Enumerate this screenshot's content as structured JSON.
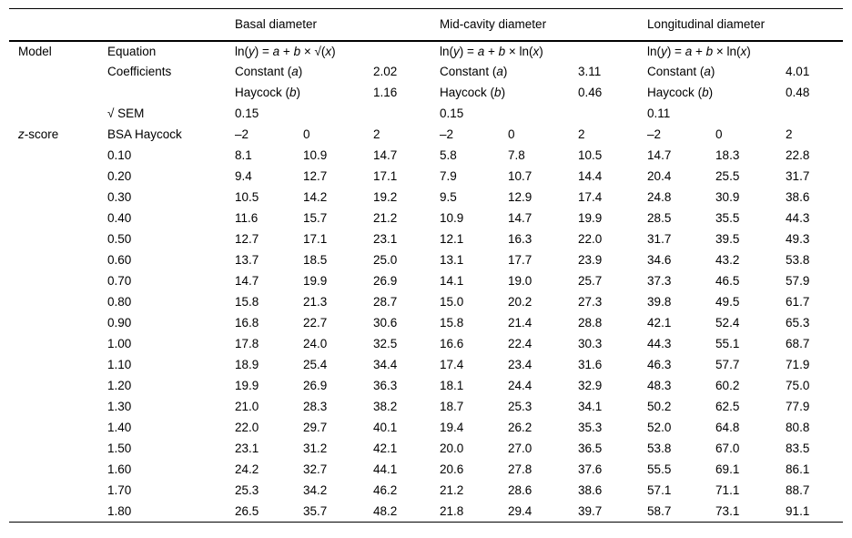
{
  "table": {
    "group_headers": [
      "Basal diameter",
      "Mid-cavity diameter",
      "Longitudinal diameter"
    ],
    "model": {
      "label": "Model",
      "equation_label": "Equation",
      "coefficients_label": "Coefficients",
      "sem_label": "√ SEM",
      "constant_label": "Constant (a)",
      "haycock_label": "Haycock (b)",
      "groups": [
        {
          "equation": "ln(y) = a + b × √(x)",
          "constant": "2.02",
          "haycock": "1.16",
          "sem": "0.15"
        },
        {
          "equation": "ln(y) = a + b × ln(x)",
          "constant": "3.11",
          "haycock": "0.46",
          "sem": "0.15"
        },
        {
          "equation": "ln(y) = a + b × ln(x)",
          "constant": "4.01",
          "haycock": "0.48",
          "sem": "0.11"
        }
      ]
    },
    "zscore": {
      "label": "z-score",
      "bsa_label": "BSA Haycock",
      "z_columns": [
        "–2",
        "0",
        "2"
      ],
      "rows": [
        {
          "bsa": "0.10",
          "values": [
            "8.1",
            "10.9",
            "14.7",
            "5.8",
            "7.8",
            "10.5",
            "14.7",
            "18.3",
            "22.8"
          ]
        },
        {
          "bsa": "0.20",
          "values": [
            "9.4",
            "12.7",
            "17.1",
            "7.9",
            "10.7",
            "14.4",
            "20.4",
            "25.5",
            "31.7"
          ]
        },
        {
          "bsa": "0.30",
          "values": [
            "10.5",
            "14.2",
            "19.2",
            "9.5",
            "12.9",
            "17.4",
            "24.8",
            "30.9",
            "38.6"
          ]
        },
        {
          "bsa": "0.40",
          "values": [
            "11.6",
            "15.7",
            "21.2",
            "10.9",
            "14.7",
            "19.9",
            "28.5",
            "35.5",
            "44.3"
          ]
        },
        {
          "bsa": "0.50",
          "values": [
            "12.7",
            "17.1",
            "23.1",
            "12.1",
            "16.3",
            "22.0",
            "31.7",
            "39.5",
            "49.3"
          ]
        },
        {
          "bsa": "0.60",
          "values": [
            "13.7",
            "18.5",
            "25.0",
            "13.1",
            "17.7",
            "23.9",
            "34.6",
            "43.2",
            "53.8"
          ]
        },
        {
          "bsa": "0.70",
          "values": [
            "14.7",
            "19.9",
            "26.9",
            "14.1",
            "19.0",
            "25.7",
            "37.3",
            "46.5",
            "57.9"
          ]
        },
        {
          "bsa": "0.80",
          "values": [
            "15.8",
            "21.3",
            "28.7",
            "15.0",
            "20.2",
            "27.3",
            "39.8",
            "49.5",
            "61.7"
          ]
        },
        {
          "bsa": "0.90",
          "values": [
            "16.8",
            "22.7",
            "30.6",
            "15.8",
            "21.4",
            "28.8",
            "42.1",
            "52.4",
            "65.3"
          ]
        },
        {
          "bsa": "1.00",
          "values": [
            "17.8",
            "24.0",
            "32.5",
            "16.6",
            "22.4",
            "30.3",
            "44.3",
            "55.1",
            "68.7"
          ]
        },
        {
          "bsa": "1.10",
          "values": [
            "18.9",
            "25.4",
            "34.4",
            "17.4",
            "23.4",
            "31.6",
            "46.3",
            "57.7",
            "71.9"
          ]
        },
        {
          "bsa": "1.20",
          "values": [
            "19.9",
            "26.9",
            "36.3",
            "18.1",
            "24.4",
            "32.9",
            "48.3",
            "60.2",
            "75.0"
          ]
        },
        {
          "bsa": "1.30",
          "values": [
            "21.0",
            "28.3",
            "38.2",
            "18.7",
            "25.3",
            "34.1",
            "50.2",
            "62.5",
            "77.9"
          ]
        },
        {
          "bsa": "1.40",
          "values": [
            "22.0",
            "29.7",
            "40.1",
            "19.4",
            "26.2",
            "35.3",
            "52.0",
            "64.8",
            "80.8"
          ]
        },
        {
          "bsa": "1.50",
          "values": [
            "23.1",
            "31.2",
            "42.1",
            "20.0",
            "27.0",
            "36.5",
            "53.8",
            "67.0",
            "83.5"
          ]
        },
        {
          "bsa": "1.60",
          "values": [
            "24.2",
            "32.7",
            "44.1",
            "20.6",
            "27.8",
            "37.6",
            "55.5",
            "69.1",
            "86.1"
          ]
        },
        {
          "bsa": "1.70",
          "values": [
            "25.3",
            "34.2",
            "46.2",
            "21.2",
            "28.6",
            "38.6",
            "57.1",
            "71.1",
            "88.7"
          ]
        },
        {
          "bsa": "1.80",
          "values": [
            "26.5",
            "35.7",
            "48.2",
            "21.8",
            "29.4",
            "39.7",
            "58.7",
            "73.1",
            "91.1"
          ]
        }
      ]
    }
  }
}
